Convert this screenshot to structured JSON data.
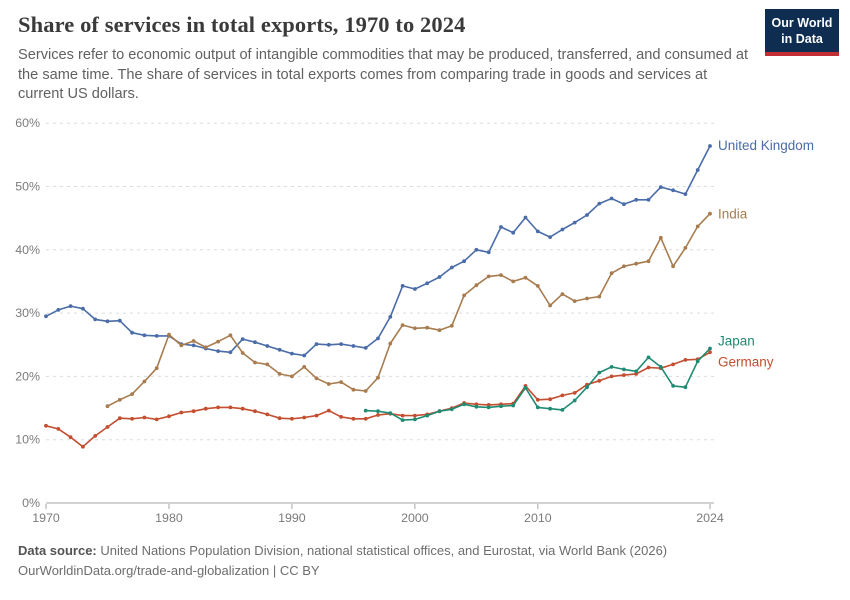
{
  "header": {
    "title": "Share of services in total exports, 1970 to 2024",
    "subtitle": "Services refer to economic output of intangible commodities that may be produced, transferred, and consumed at the same time. The share of services in total exports comes from comparing trade in goods and services at current US dollars."
  },
  "logo": {
    "line1": "Our World",
    "line2": "in Data",
    "bg_color": "#0e2d51",
    "accent_color": "#c22e34"
  },
  "chart_data": {
    "type": "line",
    "x": {
      "min": 1970,
      "max": 2024,
      "ticks": [
        1970,
        1980,
        1990,
        2000,
        2010,
        2024
      ]
    },
    "y": {
      "min": 0,
      "max": 60,
      "ticks": [
        0,
        10,
        20,
        30,
        40,
        50,
        60
      ],
      "tick_suffix": "%"
    },
    "grid": "dashed",
    "legend_position": "right-of-line-labels",
    "series": [
      {
        "name": "United Kingdom",
        "color": "#4a6ca8",
        "start_year": 1970,
        "label_offset": 0,
        "values": [
          29.5,
          30.5,
          31.1,
          30.7,
          29.0,
          28.7,
          28.8,
          26.9,
          26.5,
          26.4,
          26.4,
          25.1,
          24.9,
          24.4,
          24.0,
          23.8,
          25.9,
          25.4,
          24.8,
          24.2,
          23.6,
          23.3,
          25.1,
          25.0,
          25.1,
          24.8,
          24.5,
          26.0,
          29.4,
          34.3,
          33.8,
          34.7,
          35.7,
          37.2,
          38.2,
          40.0,
          39.6,
          43.6,
          42.7,
          45.1,
          42.9,
          42.0,
          43.2,
          44.3,
          45.5,
          47.3,
          48.1,
          47.2,
          47.9,
          47.9,
          49.9,
          49.4,
          48.8,
          52.6,
          56.4
        ]
      },
      {
        "name": "India",
        "color": "#a87c4f",
        "start_year": 1975,
        "label_offset": 1,
        "values": [
          15.3,
          16.3,
          17.2,
          19.2,
          21.3,
          26.6,
          24.9,
          25.6,
          24.6,
          25.5,
          26.5,
          23.7,
          22.2,
          21.9,
          20.4,
          20.0,
          21.5,
          19.7,
          18.8,
          19.1,
          17.9,
          17.7,
          19.8,
          25.2,
          28.1,
          27.6,
          27.7,
          27.3,
          28.0,
          32.8,
          34.4,
          35.8,
          36.0,
          35.0,
          35.6,
          34.3,
          31.2,
          33.0,
          31.9,
          32.3,
          32.6,
          36.3,
          37.4,
          37.8,
          38.2,
          41.9,
          37.4,
          40.3,
          43.7,
          45.7
        ]
      },
      {
        "name": "Germany",
        "color": "#c34e30",
        "start_year": 1970,
        "label_offset": 10,
        "values": [
          12.2,
          11.7,
          10.4,
          8.9,
          10.6,
          12.0,
          13.4,
          13.3,
          13.5,
          13.2,
          13.7,
          14.3,
          14.5,
          14.9,
          15.1,
          15.1,
          14.9,
          14.5,
          14.0,
          13.4,
          13.3,
          13.5,
          13.8,
          14.6,
          13.6,
          13.3,
          13.3,
          13.9,
          14.1,
          13.8,
          13.8,
          14.0,
          14.5,
          15.0,
          15.8,
          15.6,
          15.5,
          15.6,
          15.7,
          18.5,
          16.3,
          16.4,
          17.0,
          17.4,
          18.7,
          19.3,
          20.0,
          20.2,
          20.4,
          21.4,
          21.3,
          21.9,
          22.6,
          22.7,
          23.8
        ]
      },
      {
        "name": "Japan",
        "color": "#208b72",
        "start_year": 1996,
        "label_offset": -7,
        "values": [
          14.6,
          14.5,
          14.2,
          13.1,
          13.2,
          13.8,
          14.5,
          14.8,
          15.6,
          15.2,
          15.1,
          15.3,
          15.4,
          18.2,
          15.1,
          14.9,
          14.7,
          16.2,
          18.3,
          20.6,
          21.5,
          21.1,
          20.8,
          23.0,
          21.5,
          18.5,
          18.3,
          22.4,
          24.4
        ]
      }
    ]
  },
  "footer": {
    "source_label": "Data source:",
    "source_text": "United Nations Population Division, national statistical offices, and Eurostat, via World Bank (2026)",
    "license_line": "OurWorldinData.org/trade-and-globalization | CC BY"
  }
}
